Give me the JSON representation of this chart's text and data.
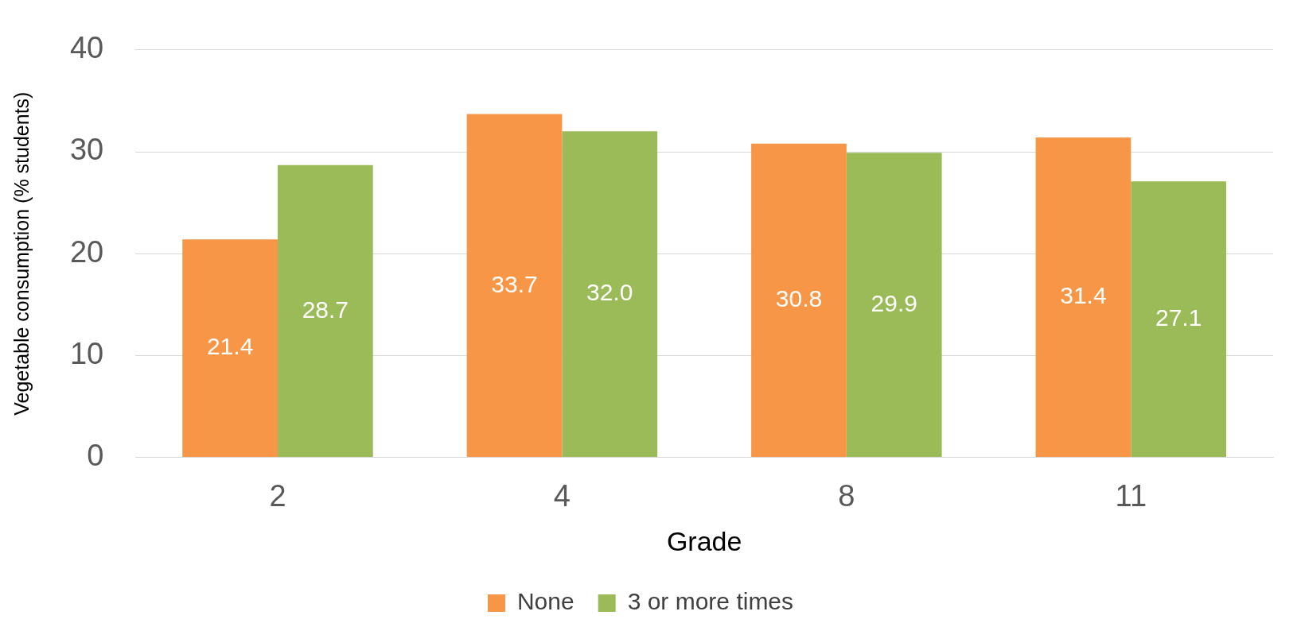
{
  "chart_data": {
    "type": "bar",
    "xlabel": "Grade",
    "ylabel": "Vegetable consumption (% students)",
    "categories": [
      "2",
      "4",
      "8",
      "11"
    ],
    "series": [
      {
        "name": "None",
        "color": "#f79646",
        "values": [
          21.4,
          33.7,
          30.8,
          31.4
        ],
        "value_labels": [
          "21.4",
          "33.7",
          "30.8",
          "31.4"
        ]
      },
      {
        "name": "3 or more times",
        "color": "#9bbb59",
        "values": [
          28.7,
          32.0,
          29.9,
          27.1
        ],
        "value_labels": [
          "28.7",
          "32.0",
          "29.9",
          "27.1"
        ]
      }
    ],
    "ylim": [
      0,
      40
    ],
    "yticks": [
      0,
      10,
      20,
      30,
      40
    ],
    "grid": "y",
    "legend": "bottom"
  }
}
